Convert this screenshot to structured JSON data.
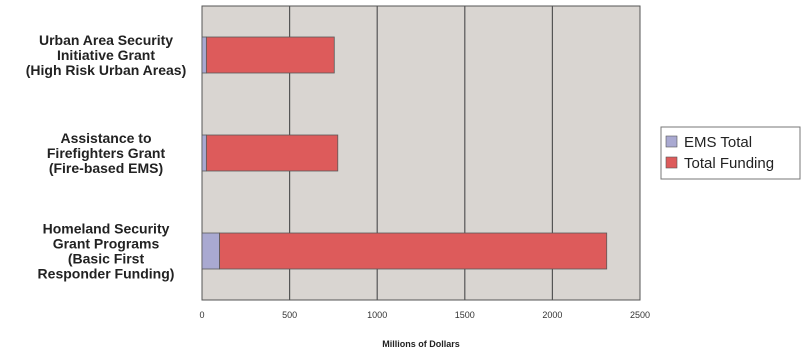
{
  "chart_data": {
    "type": "bar",
    "orientation": "horizontal",
    "stacked": true,
    "categories": [
      [
        "Urban Area Security",
        "Initiative Grant",
        "(High Risk Urban Areas)"
      ],
      [
        "Assistance to",
        "Firefighters Grant",
        "(Fire-based EMS)"
      ],
      [
        "Homeland Security",
        "Grant Programs",
        "(Basic First",
        "Responder Funding)"
      ]
    ],
    "series": [
      {
        "name": "EMS Total",
        "color": "#a9a9d1",
        "values": [
          25,
          25,
          100
        ]
      },
      {
        "name": "Total Funding",
        "color": "#dd5b5b",
        "values": [
          730,
          750,
          2210
        ]
      }
    ],
    "xlim": [
      0,
      2500
    ],
    "xticks": [
      "0",
      "500",
      "1000",
      "1500",
      "2000",
      "2500"
    ],
    "xlabel": "Millions of Dollars",
    "ylabel": "",
    "grid": "vertical",
    "plot_background": "#d9d5d1",
    "legend_position": "right"
  }
}
